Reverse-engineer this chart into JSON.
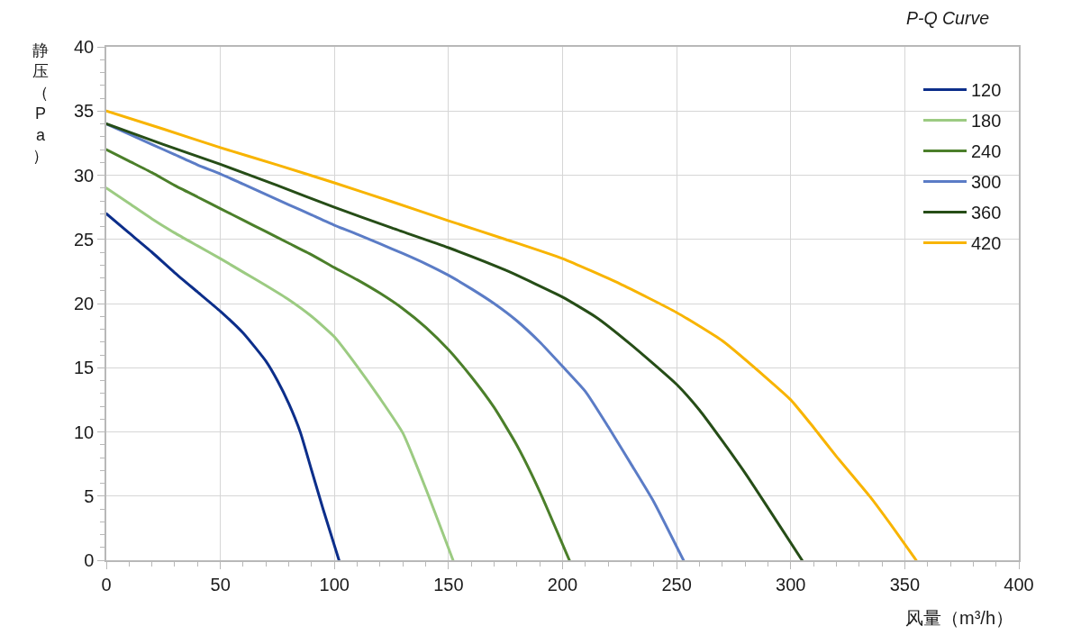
{
  "chart_data": {
    "type": "line",
    "title": "P-Q Curve",
    "xlabel": "风量（m³/h）",
    "ylabel": "静压（Pa）",
    "xlim": [
      0,
      400
    ],
    "ylim": [
      0,
      40
    ],
    "xticks": [
      0,
      {
        "value": 10,
        "label": null
      },
      {
        "value": 20,
        "label": null
      },
      {
        "value": 30,
        "label": null
      },
      {
        "value": 40,
        "label": null
      },
      50,
      {
        "value": 60,
        "label": null
      },
      {
        "value": 70,
        "label": null
      },
      {
        "value": 80,
        "label": null
      },
      {
        "value": 90,
        "label": null
      },
      100,
      {
        "value": 110,
        "label": null
      },
      {
        "value": 120,
        "label": null
      },
      {
        "value": 130,
        "label": null
      },
      {
        "value": 140,
        "label": null
      },
      150,
      {
        "value": 160,
        "label": null
      },
      {
        "value": 170,
        "label": null
      },
      {
        "value": 180,
        "label": null
      },
      {
        "value": 190,
        "label": null
      },
      200,
      {
        "value": 210,
        "label": null
      },
      {
        "value": 220,
        "label": null
      },
      {
        "value": 230,
        "label": null
      },
      {
        "value": 240,
        "label": null
      },
      250,
      {
        "value": 260,
        "label": null
      },
      {
        "value": 270,
        "label": null
      },
      {
        "value": 280,
        "label": null
      },
      {
        "value": 290,
        "label": null
      },
      300,
      {
        "value": 310,
        "label": null
      },
      {
        "value": 320,
        "label": null
      },
      {
        "value": 330,
        "label": null
      },
      {
        "value": 340,
        "label": null
      },
      350,
      {
        "value": 360,
        "label": null
      },
      {
        "value": 370,
        "label": null
      },
      {
        "value": 380,
        "label": null
      },
      {
        "value": 390,
        "label": null
      },
      400
    ],
    "yticks": [
      0,
      {
        "value": 1,
        "label": null
      },
      {
        "value": 2,
        "label": null
      },
      {
        "value": 3,
        "label": null
      },
      {
        "value": 4,
        "label": null
      },
      5,
      {
        "value": 6,
        "label": null
      },
      {
        "value": 7,
        "label": null
      },
      {
        "value": 8,
        "label": null
      },
      {
        "value": 9,
        "label": null
      },
      10,
      {
        "value": 11,
        "label": null
      },
      {
        "value": 12,
        "label": null
      },
      {
        "value": 13,
        "label": null
      },
      {
        "value": 14,
        "label": null
      },
      15,
      {
        "value": 16,
        "label": null
      },
      {
        "value": 17,
        "label": null
      },
      {
        "value": 18,
        "label": null
      },
      {
        "value": 19,
        "label": null
      },
      20,
      {
        "value": 21,
        "label": null
      },
      {
        "value": 22,
        "label": null
      },
      {
        "value": 23,
        "label": null
      },
      {
        "value": 24,
        "label": null
      },
      25,
      {
        "value": 26,
        "label": null
      },
      {
        "value": 27,
        "label": null
      },
      {
        "value": 28,
        "label": null
      },
      {
        "value": 29,
        "label": null
      },
      30,
      {
        "value": 31,
        "label": null
      },
      {
        "value": 32,
        "label": null
      },
      {
        "value": 33,
        "label": null
      },
      {
        "value": 34,
        "label": null
      },
      35,
      {
        "value": 36,
        "label": null
      },
      {
        "value": 37,
        "label": null
      },
      {
        "value": 38,
        "label": null
      },
      {
        "value": 39,
        "label": null
      },
      40
    ],
    "grid": true,
    "legend": "top right",
    "line_style": "solid",
    "series": [
      {
        "name": "120",
        "color": "#0c2e8a",
        "x": [
          0,
          10,
          20,
          30,
          40,
          50,
          60,
          70,
          75,
          80,
          85,
          90,
          95,
          102
        ],
        "values": [
          27,
          25.5,
          24,
          22.4,
          20.9,
          19.4,
          17.7,
          15.5,
          14,
          12.2,
          10,
          7,
          4,
          0
        ]
      },
      {
        "name": "180",
        "color": "#9ccb82",
        "x": [
          0,
          10,
          20,
          30,
          40,
          50,
          60,
          70,
          80,
          90,
          100,
          110,
          120,
          130,
          140,
          152
        ],
        "values": [
          29,
          27.8,
          26.6,
          25.5,
          24.5,
          23.5,
          22.45,
          21.4,
          20.3,
          19,
          17.4,
          15.1,
          12.6,
          9.9,
          5.6,
          0
        ]
      },
      {
        "name": "240",
        "color": "#4b7f2a",
        "x": [
          0,
          10,
          20,
          30,
          40,
          50,
          60,
          70,
          80,
          90,
          100,
          110,
          120,
          130,
          140,
          150,
          160,
          170,
          180,
          190,
          203
        ],
        "values": [
          32,
          31.1,
          30.2,
          29.2,
          28.3,
          27.4,
          26.5,
          25.6,
          24.7,
          23.8,
          22.8,
          21.85,
          20.8,
          19.6,
          18.15,
          16.4,
          14.3,
          11.9,
          8.95,
          5.35,
          0
        ]
      },
      {
        "name": "300",
        "color": "#5b7cc6",
        "x": [
          0,
          10,
          20,
          30,
          40,
          50,
          60,
          70,
          80,
          90,
          100,
          110,
          120,
          130,
          140,
          150,
          160,
          170,
          180,
          190,
          200,
          210,
          220,
          230,
          240,
          253
        ],
        "values": [
          34,
          33.2,
          32.4,
          31.6,
          30.8,
          30.1,
          29.3,
          28.5,
          27.7,
          26.9,
          26.1,
          25.4,
          24.65,
          23.9,
          23.1,
          22.2,
          21.15,
          20,
          18.65,
          17,
          15.1,
          13.15,
          10.4,
          7.5,
          4.55,
          0
        ]
      },
      {
        "name": "360",
        "color": "#264d17",
        "x": [
          0,
          25,
          50,
          75,
          100,
          125,
          150,
          175,
          200,
          215,
          230,
          250,
          260,
          270,
          280,
          290,
          305
        ],
        "values": [
          34,
          32.4,
          30.85,
          29.2,
          27.5,
          25.9,
          24.35,
          22.6,
          20.5,
          18.9,
          16.8,
          13.7,
          11.7,
          9.3,
          6.8,
          4.1,
          0
        ]
      },
      {
        "name": "420",
        "color": "#f8b400",
        "x": [
          0,
          25,
          50,
          75,
          100,
          125,
          150,
          175,
          200,
          225,
          250,
          270,
          290,
          300,
          310,
          320,
          335,
          345,
          355
        ],
        "values": [
          35,
          33.6,
          32.15,
          30.8,
          29.4,
          27.95,
          26.45,
          25,
          23.5,
          21.55,
          19.3,
          17.1,
          14.1,
          12.5,
          10.35,
          8.1,
          4.9,
          2.5,
          0
        ]
      }
    ]
  }
}
